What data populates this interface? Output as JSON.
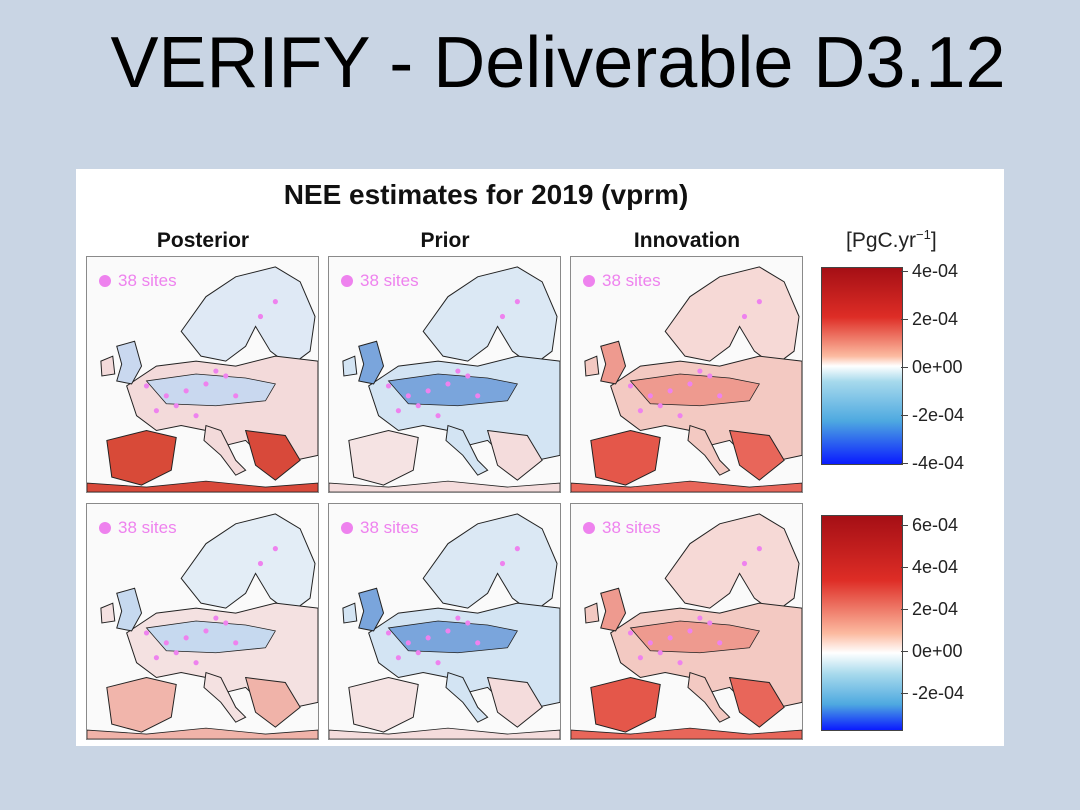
{
  "slide": {
    "title": "VERIFY - Deliverable D3.12"
  },
  "figure": {
    "title": "NEE estimates for 2019 (vprm)",
    "columns": [
      "Posterior",
      "Prior",
      "Innovation"
    ],
    "unit_label": "[PgC.yr",
    "unit_exponent": "−1",
    "unit_close": "]",
    "sites_label": "38 sites",
    "colorbar_top_ticks": [
      "4e-04",
      "2e-04",
      "0e+00",
      "-2e-04",
      "-4e-04"
    ],
    "colorbar_bottom_ticks": [
      "6e-04",
      "4e-04",
      "2e-04",
      "0e+00",
      "-2e-04"
    ],
    "colors": {
      "positive": "#de2d26",
      "negative": "#2b6fd6",
      "sites": "#ee82ee"
    }
  }
}
